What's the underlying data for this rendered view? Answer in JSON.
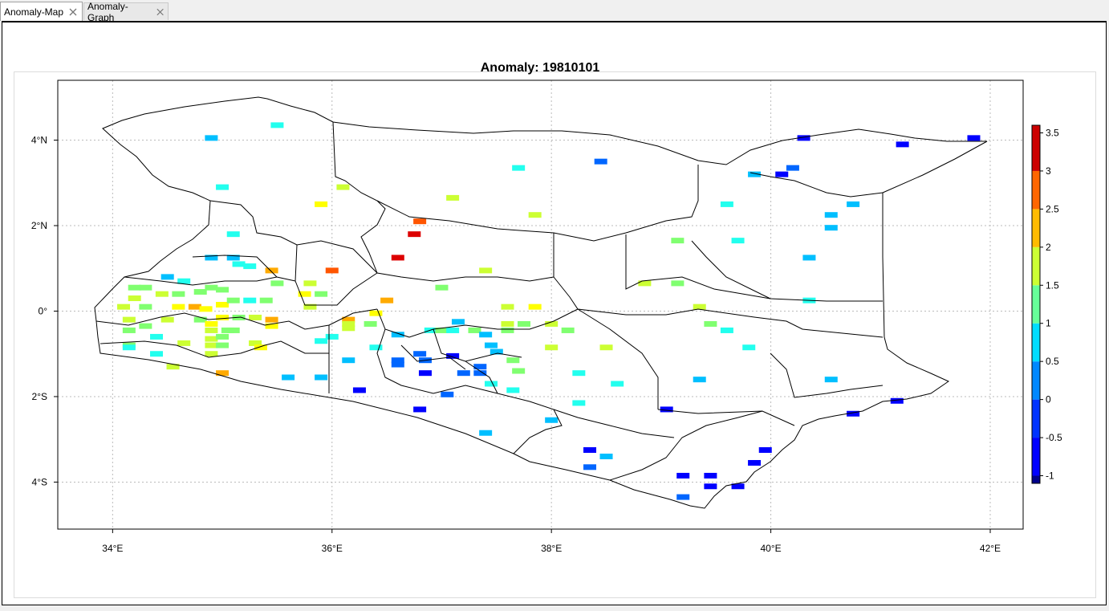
{
  "tabs": [
    {
      "label": "Anomaly-Map",
      "active": true
    },
    {
      "label": "Anomaly-Graph",
      "active": false
    }
  ],
  "map": {
    "title": "Anomaly: 19810101",
    "lon_ticks": [
      "34°E",
      "36°E",
      "38°E",
      "40°E",
      "42°E"
    ],
    "lat_ticks": [
      "4°N",
      "2°N",
      "0°",
      "2°S",
      "4°S"
    ],
    "colorbar": {
      "labels": [
        "3.5",
        "3",
        "2.5",
        "2",
        "1.5",
        "1",
        "0.5",
        "0",
        "-0.5",
        "-1"
      ],
      "colors": [
        "#00008b",
        "#0000ff",
        "#0066ff",
        "#00bfff",
        "#22ffee",
        "#80ff70",
        "#ccff33",
        "#ffff00",
        "#ffaa00",
        "#ff5500",
        "#dd0000",
        "#880000"
      ]
    }
  },
  "chart_data": {
    "type": "heatmap",
    "title": "Anomaly: 19810101",
    "xlabel": "",
    "ylabel": "",
    "xlim": [
      33.5,
      42.3
    ],
    "ylim": [
      -5.1,
      5.4
    ],
    "vlim": [
      -1.1,
      3.6
    ],
    "points": [
      [
        34.9,
        4.05,
        0.6
      ],
      [
        35.5,
        4.35,
        1.2
      ],
      [
        35.0,
        2.9,
        1.2
      ],
      [
        35.1,
        1.8,
        1.2
      ],
      [
        35.9,
        2.5,
        2.1
      ],
      [
        36.1,
        2.9,
        1.8
      ],
      [
        36.8,
        2.1,
        2.8
      ],
      [
        36.75,
        1.8,
        3.3
      ],
      [
        36.6,
        1.25,
        3.4
      ],
      [
        37.1,
        2.65,
        1.8
      ],
      [
        37.7,
        3.35,
        0.9
      ],
      [
        37.85,
        2.25,
        1.8
      ],
      [
        38.45,
        3.5,
        0.2
      ],
      [
        34.9,
        1.25,
        0.3
      ],
      [
        35.1,
        1.25,
        0.7
      ],
      [
        35.15,
        1.1,
        1.2
      ],
      [
        35.25,
        1.05,
        1.2
      ],
      [
        34.5,
        0.8,
        0.6
      ],
      [
        34.65,
        0.7,
        0.9
      ],
      [
        34.3,
        0.55,
        1.3
      ],
      [
        34.2,
        0.55,
        1.3
      ],
      [
        34.2,
        0.3,
        1.9
      ],
      [
        34.45,
        0.4,
        1.9
      ],
      [
        34.6,
        0.4,
        1.7
      ],
      [
        34.8,
        0.45,
        1.5
      ],
      [
        34.9,
        0.55,
        1.3
      ],
      [
        35.0,
        0.5,
        1.3
      ],
      [
        34.1,
        0.1,
        1.8
      ],
      [
        34.3,
        0.1,
        1.7
      ],
      [
        34.6,
        0.1,
        2.0
      ],
      [
        34.75,
        0.1,
        2.3
      ],
      [
        34.85,
        0.05,
        2.1
      ],
      [
        35.0,
        0.15,
        2.2
      ],
      [
        35.1,
        0.25,
        1.3
      ],
      [
        35.25,
        0.25,
        1.2
      ],
      [
        35.4,
        0.25,
        1.3
      ],
      [
        34.15,
        -0.2,
        1.9
      ],
      [
        34.5,
        -0.2,
        1.9
      ],
      [
        34.8,
        -0.2,
        1.6
      ],
      [
        34.9,
        -0.3,
        2.2
      ],
      [
        35.0,
        -0.15,
        2.0
      ],
      [
        35.15,
        -0.15,
        1.7
      ],
      [
        35.3,
        -0.15,
        1.8
      ],
      [
        35.45,
        -0.2,
        2.3
      ],
      [
        34.15,
        -0.45,
        1.3
      ],
      [
        34.3,
        -0.35,
        1.3
      ],
      [
        34.9,
        -0.45,
        1.9
      ],
      [
        35.05,
        -0.45,
        1.5
      ],
      [
        35.1,
        -0.45,
        1.3
      ],
      [
        35.45,
        -0.35,
        2.1
      ],
      [
        34.4,
        -0.6,
        1.2
      ],
      [
        34.65,
        -0.75,
        1.8
      ],
      [
        34.9,
        -0.65,
        1.8
      ],
      [
        35.0,
        -0.6,
        1.6
      ],
      [
        34.15,
        -0.8,
        1.3
      ],
      [
        34.15,
        -0.85,
        1.2
      ],
      [
        34.9,
        -0.8,
        1.8
      ],
      [
        35.0,
        -0.8,
        1.5
      ],
      [
        35.3,
        -0.75,
        1.9
      ],
      [
        35.35,
        -0.85,
        2.2
      ],
      [
        34.4,
        -1.0,
        1.2
      ],
      [
        34.9,
        -1.0,
        1.9
      ],
      [
        34.55,
        -1.3,
        1.8
      ],
      [
        35.0,
        -1.45,
        2.3
      ],
      [
        35.45,
        0.95,
        2.3
      ],
      [
        35.5,
        0.65,
        1.6
      ],
      [
        35.8,
        0.65,
        1.8
      ],
      [
        35.75,
        0.4,
        2.2
      ],
      [
        35.9,
        0.4,
        1.3
      ],
      [
        35.8,
        0.1,
        1.8
      ],
      [
        36.0,
        0.95,
        2.8
      ],
      [
        35.9,
        -0.7,
        1.2
      ],
      [
        36.0,
        -0.6,
        1.2
      ],
      [
        36.15,
        -0.2,
        2.3
      ],
      [
        36.15,
        -0.3,
        1.9
      ],
      [
        36.15,
        -0.4,
        1.9
      ],
      [
        36.35,
        -0.3,
        1.3
      ],
      [
        36.4,
        -0.05,
        2.1
      ],
      [
        36.5,
        0.25,
        2.3
      ],
      [
        36.4,
        -0.85,
        0.8
      ],
      [
        36.15,
        -1.15,
        0.6
      ],
      [
        35.6,
        -1.55,
        0.3
      ],
      [
        35.9,
        -1.55,
        0.3
      ],
      [
        36.25,
        -1.85,
        -0.3
      ],
      [
        36.6,
        -0.55,
        0.7
      ],
      [
        36.6,
        -1.15,
        0.0
      ],
      [
        36.6,
        -1.25,
        -0.2
      ],
      [
        36.8,
        -1.0,
        -0.2
      ],
      [
        36.85,
        -1.15,
        0.0
      ],
      [
        36.85,
        -1.45,
        -0.3
      ],
      [
        36.8,
        -2.3,
        -0.3
      ],
      [
        36.9,
        -0.45,
        1.2
      ],
      [
        37.0,
        -0.45,
        1.3
      ],
      [
        37.1,
        -0.45,
        1.2
      ],
      [
        37.15,
        -0.25,
        0.7
      ],
      [
        37.3,
        -0.45,
        1.3
      ],
      [
        37.4,
        -0.55,
        0.7
      ],
      [
        37.45,
        -0.8,
        0.6
      ],
      [
        37.5,
        -0.95,
        0.6
      ],
      [
        37.1,
        -1.05,
        -0.3
      ],
      [
        37.2,
        -1.45,
        -0.2
      ],
      [
        37.35,
        -1.3,
        -0.1
      ],
      [
        37.35,
        -1.45,
        0.1
      ],
      [
        37.05,
        -1.95,
        0.1
      ],
      [
        37.45,
        -1.7,
        0.8
      ],
      [
        37.65,
        -1.85,
        0.9
      ],
      [
        37.65,
        -1.15,
        1.3
      ],
      [
        37.7,
        -1.4,
        1.5
      ],
      [
        37.4,
        -2.85,
        0.3
      ],
      [
        37.0,
        0.55,
        1.3
      ],
      [
        37.4,
        0.95,
        1.8
      ],
      [
        37.6,
        0.1,
        1.8
      ],
      [
        37.6,
        -0.3,
        1.9
      ],
      [
        37.75,
        -0.3,
        1.4
      ],
      [
        37.6,
        -0.45,
        1.4
      ],
      [
        37.85,
        0.1,
        2.2
      ],
      [
        38.0,
        -0.3,
        1.8
      ],
      [
        38.15,
        -0.45,
        1.3
      ],
      [
        38.0,
        -0.85,
        1.8
      ],
      [
        38.25,
        -1.45,
        1.2
      ],
      [
        38.25,
        -2.15,
        0.9
      ],
      [
        38.0,
        -2.55,
        0.4
      ],
      [
        38.5,
        -0.85,
        1.8
      ],
      [
        38.6,
        -1.7,
        1.2
      ],
      [
        38.85,
        0.65,
        1.8
      ],
      [
        39.15,
        0.65,
        1.3
      ],
      [
        39.15,
        1.65,
        1.3
      ],
      [
        39.35,
        0.1,
        1.8
      ],
      [
        39.45,
        -0.3,
        1.3
      ],
      [
        39.6,
        -0.45,
        0.8
      ],
      [
        39.35,
        -1.6,
        0.7
      ],
      [
        39.8,
        -0.85,
        0.8
      ],
      [
        39.6,
        2.5,
        0.9
      ],
      [
        39.7,
        1.65,
        1.0
      ],
      [
        39.85,
        3.2,
        0.4
      ],
      [
        40.3,
        4.05,
        -0.3
      ],
      [
        40.2,
        3.35,
        -0.2
      ],
      [
        40.1,
        3.2,
        -0.3
      ],
      [
        40.55,
        2.25,
        0.4
      ],
      [
        40.75,
        2.5,
        0.4
      ],
      [
        40.55,
        1.95,
        0.4
      ],
      [
        40.35,
        1.25,
        0.3
      ],
      [
        40.35,
        0.25,
        0.8
      ],
      [
        40.55,
        -1.6,
        0.4
      ],
      [
        40.75,
        -2.4,
        -0.3
      ],
      [
        41.15,
        -2.1,
        -0.3
      ],
      [
        41.2,
        3.9,
        -0.3
      ],
      [
        41.85,
        4.05,
        -0.5
      ],
      [
        39.05,
        -2.3,
        -0.3
      ],
      [
        38.35,
        -3.25,
        -0.3
      ],
      [
        38.35,
        -3.65,
        -0.2
      ],
      [
        38.5,
        -3.4,
        0.3
      ],
      [
        39.2,
        -3.85,
        -0.3
      ],
      [
        39.2,
        -4.35,
        -0.2
      ],
      [
        39.45,
        -3.85,
        -0.3
      ],
      [
        39.45,
        -4.1,
        -0.3
      ],
      [
        39.7,
        -4.1,
        -0.4
      ],
      [
        39.85,
        -3.55,
        -0.3
      ],
      [
        39.95,
        -3.25,
        -0.3
      ]
    ]
  }
}
